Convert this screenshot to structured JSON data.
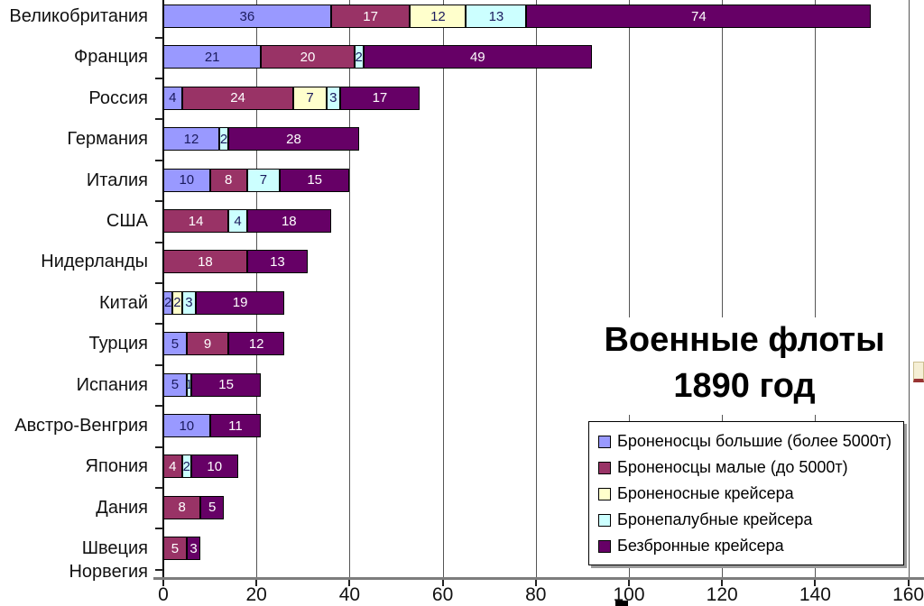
{
  "title": {
    "line1": "Военные флоты",
    "line2": "1890 год"
  },
  "chart_data": {
    "type": "bar",
    "orientation": "horizontal",
    "stacked": true,
    "title": "Военные флоты 1890 год",
    "categories": [
      "Великобритания",
      "Франция",
      "Россия",
      "Германия",
      "Италия",
      "США",
      "Нидерланды",
      "Китай",
      "Турция",
      "Испания",
      "Австро-Венгрия",
      "Япония",
      "Дания",
      "Швеция Норвегия"
    ],
    "series": [
      {
        "name": "Броненосцы большие (более 5000т)",
        "color": "#9999FF",
        "label_color": "#1b1b5e",
        "values": [
          36,
          21,
          4,
          12,
          10,
          0,
          0,
          2,
          5,
          5,
          10,
          0,
          0,
          0
        ]
      },
      {
        "name": "Броненосцы малые (до 5000т)",
        "color": "#993366",
        "label_color": "#ffffff",
        "values": [
          17,
          20,
          24,
          0,
          8,
          14,
          18,
          0,
          9,
          0,
          0,
          4,
          8,
          5
        ]
      },
      {
        "name": "Броненосные крейсера",
        "color": "#FFFFCC",
        "label_color": "#1b1b5e",
        "values": [
          12,
          0,
          7,
          0,
          0,
          0,
          0,
          2,
          0,
          0,
          0,
          0,
          0,
          0
        ]
      },
      {
        "name": "Бронепалубные крейсера",
        "color": "#CCFFFF",
        "label_color": "#1b1b5e",
        "values": [
          13,
          2,
          3,
          2,
          7,
          4,
          0,
          3,
          0,
          1,
          0,
          2,
          0,
          0
        ]
      },
      {
        "name": "Безбронные крейсера",
        "color": "#660066",
        "label_color": "#ffffff",
        "values": [
          74,
          49,
          17,
          28,
          15,
          18,
          13,
          19,
          12,
          15,
          11,
          10,
          5,
          3
        ]
      }
    ],
    "x_axis": {
      "ticks": [
        0,
        20,
        40,
        60,
        80,
        100,
        120,
        140,
        160
      ],
      "min": 0,
      "max": 160,
      "gridlines": true
    },
    "legend_position": "bottom-right"
  }
}
